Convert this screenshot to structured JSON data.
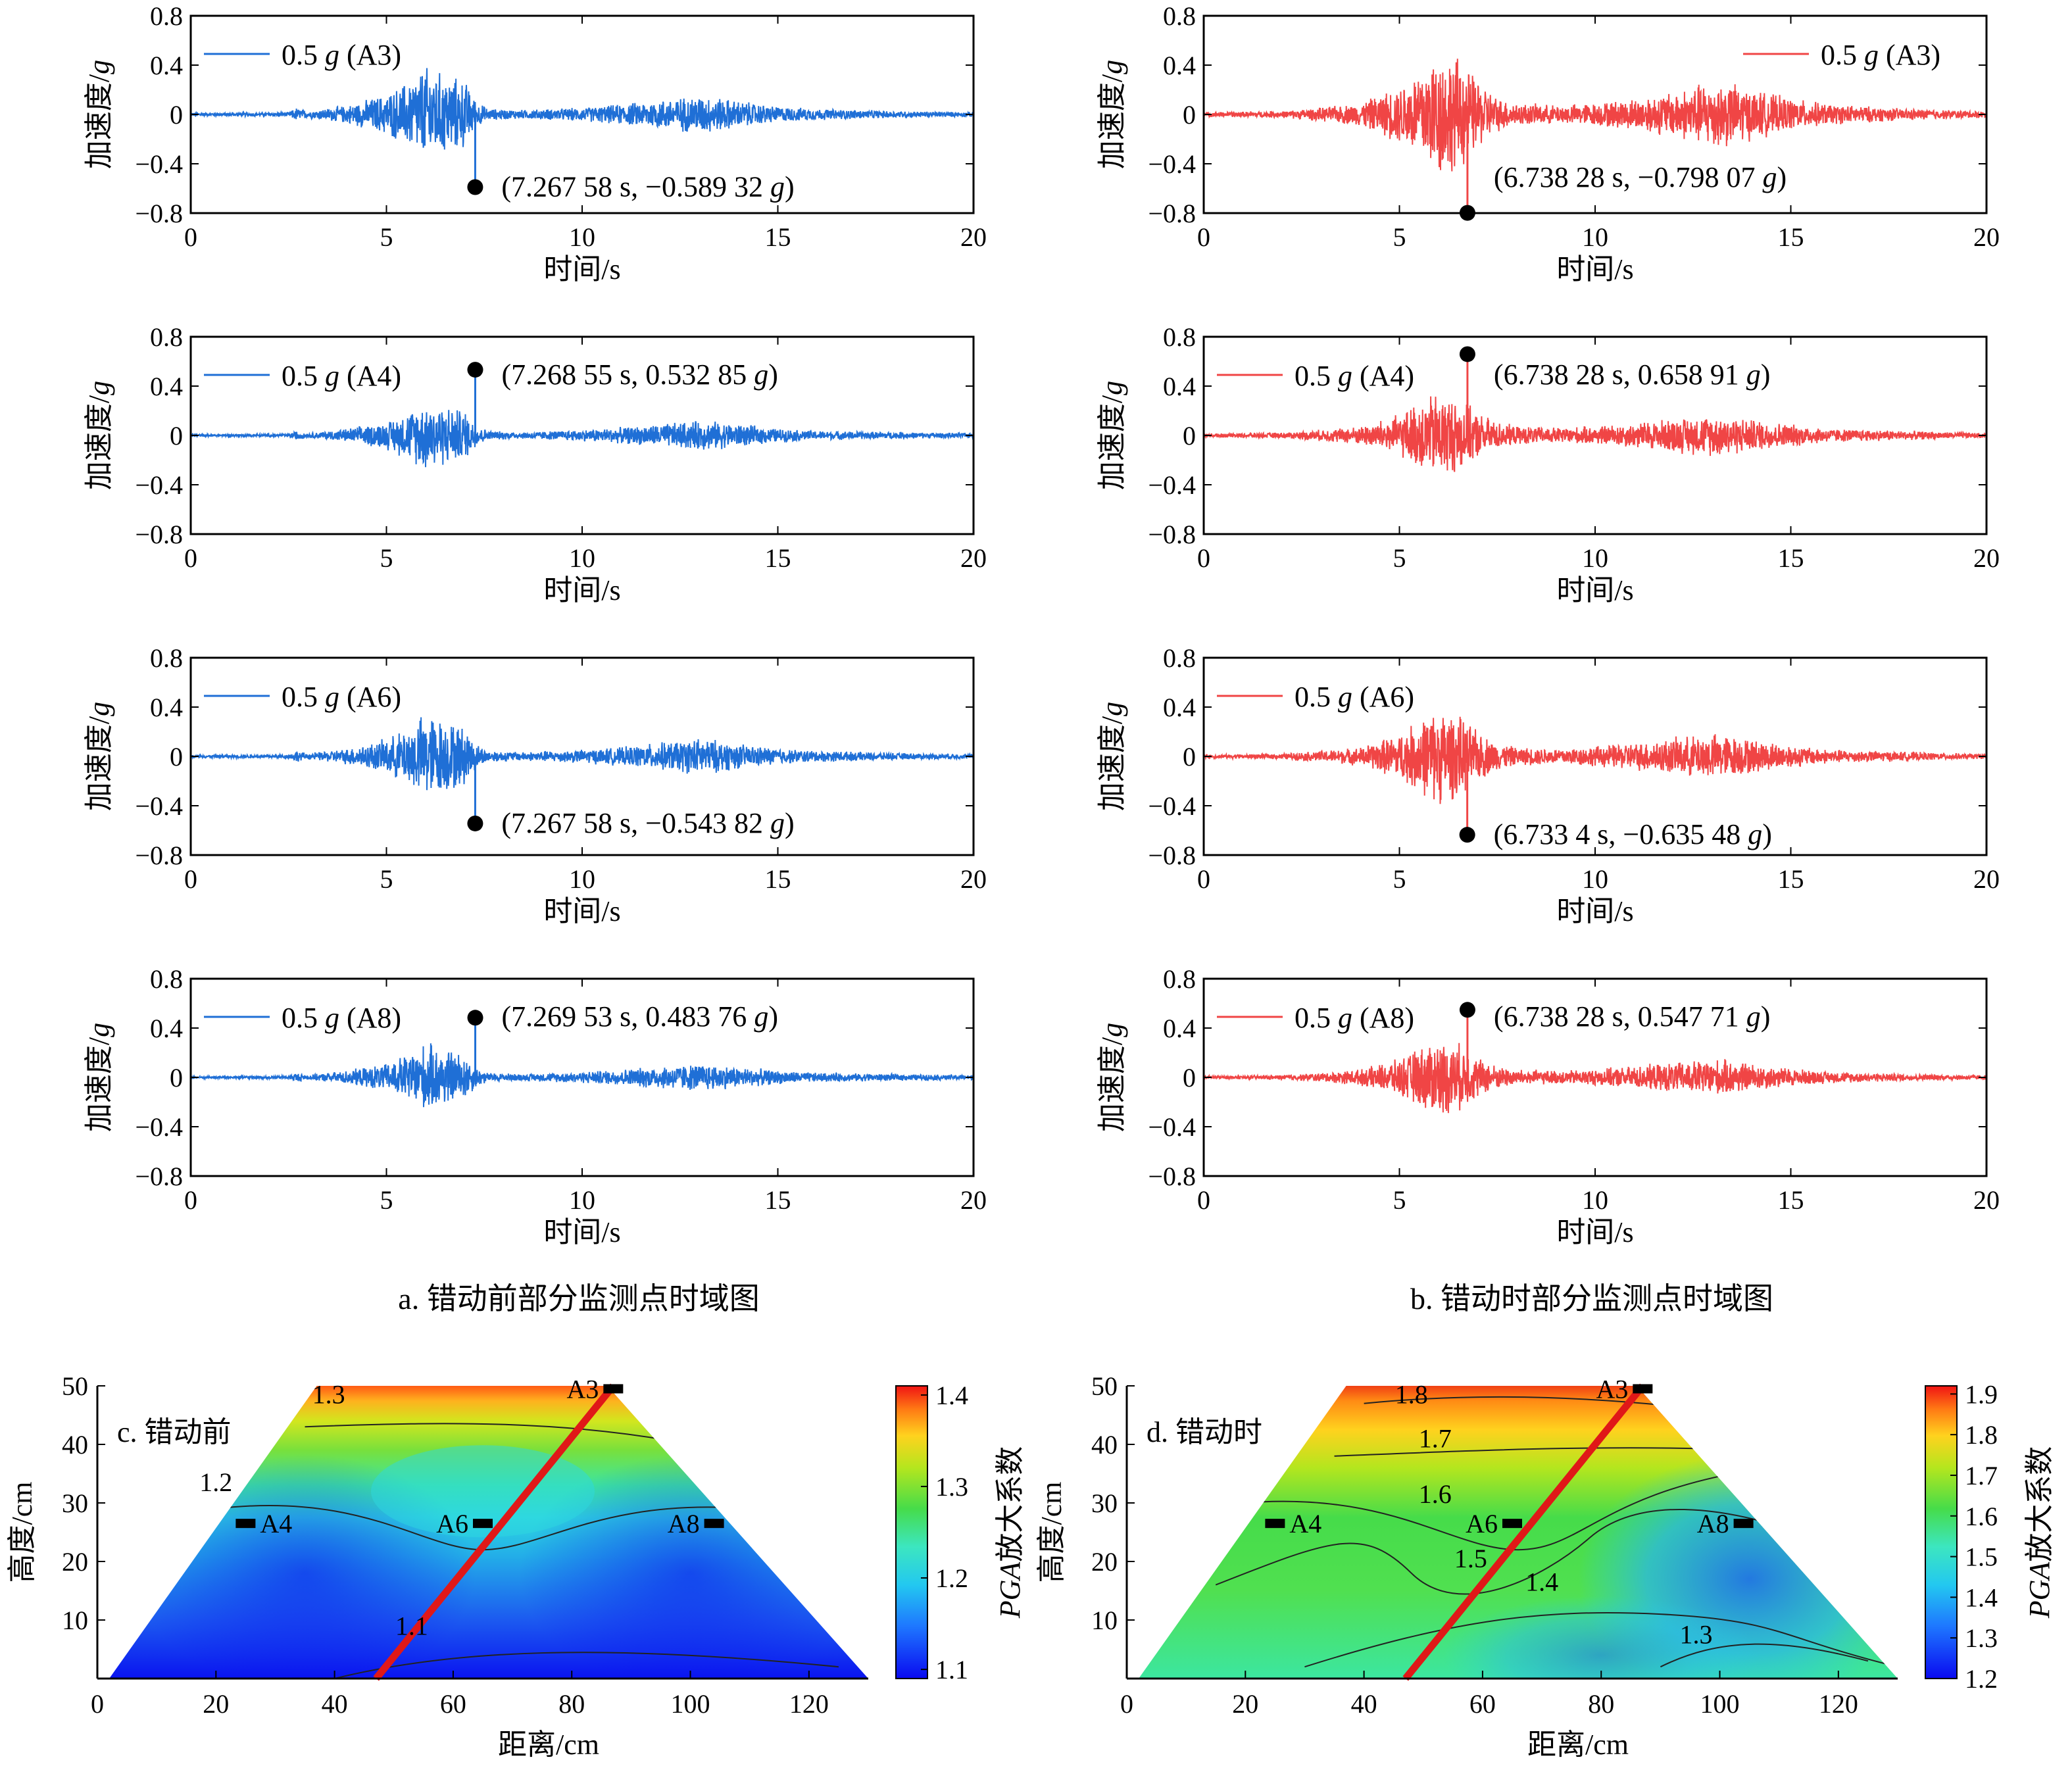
{
  "time_charts": {
    "xlabel": "时间/s",
    "ylabel_main": "加速度/",
    "ylabel_unit": "g",
    "xticks": [
      "0",
      "5",
      "10",
      "15",
      "20"
    ],
    "yticks": [
      "0.8",
      "0.4",
      "0",
      "−0.4",
      "−0.8"
    ],
    "xlim": [
      0,
      20
    ],
    "ylim": [
      -0.8,
      0.8
    ]
  },
  "captions": {
    "a": "a. 错动前部分监测点时域图",
    "b": "b. 错动时部分监测点时域图"
  },
  "chart_data": [
    {
      "id": "a1",
      "type": "line",
      "color": "#1f6fd6",
      "legend_value": "0.5",
      "legend_unit": "g",
      "legend_point": "(A3)",
      "xlim": [
        0,
        20
      ],
      "ylim": [
        -0.8,
        0.8
      ],
      "peak": {
        "t": 7.26758,
        "a": -0.58932
      },
      "annotation": {
        "prefix": "(7.267 58 s, −0.589 32 ",
        "unit": "g",
        "suffix": ")"
      },
      "envelope": {
        "t": [
          0,
          2.5,
          2.7,
          3,
          4,
          5,
          5.5,
          6,
          6.5,
          7,
          7.3,
          7.6,
          8.5,
          10,
          11,
          12,
          13,
          13.5,
          14,
          15,
          16,
          18,
          20
        ],
        "amp": [
          0.015,
          0.02,
          0.06,
          0.03,
          0.08,
          0.18,
          0.28,
          0.42,
          0.35,
          0.3,
          0.12,
          0.05,
          0.04,
          0.06,
          0.09,
          0.13,
          0.17,
          0.15,
          0.12,
          0.07,
          0.05,
          0.03,
          0.02
        ]
      }
    },
    {
      "id": "a2",
      "type": "line",
      "color": "#1f6fd6",
      "legend_value": "0.5",
      "legend_unit": "g",
      "legend_point": "(A4)",
      "xlim": [
        0,
        20
      ],
      "ylim": [
        -0.8,
        0.8
      ],
      "peak": {
        "t": 7.26855,
        "a": 0.53285
      },
      "annotation": {
        "prefix": "(7.268 55 s, 0.532 85 ",
        "unit": "g",
        "suffix": ")"
      },
      "envelope": {
        "t": [
          0,
          2.5,
          2.7,
          3,
          4,
          5,
          5.5,
          6,
          6.5,
          7,
          7.3,
          7.6,
          8.5,
          10,
          11,
          12,
          13,
          13.5,
          14,
          15,
          16,
          18,
          20
        ],
        "amp": [
          0.01,
          0.015,
          0.04,
          0.02,
          0.06,
          0.12,
          0.2,
          0.3,
          0.26,
          0.22,
          0.1,
          0.04,
          0.03,
          0.05,
          0.07,
          0.1,
          0.13,
          0.12,
          0.1,
          0.06,
          0.04,
          0.03,
          0.02
        ]
      }
    },
    {
      "id": "a3",
      "type": "line",
      "color": "#1f6fd6",
      "legend_value": "0.5",
      "legend_unit": "g",
      "legend_point": "(A6)",
      "xlim": [
        0,
        20
      ],
      "ylim": [
        -0.8,
        0.8
      ],
      "peak": {
        "t": 7.26758,
        "a": -0.54382
      },
      "annotation": {
        "prefix": "(7.267 58 s, −0.543 82 ",
        "unit": "g",
        "suffix": ")"
      },
      "envelope": {
        "t": [
          0,
          2.5,
          2.7,
          3,
          4,
          5,
          5.5,
          6,
          6.5,
          7,
          7.3,
          7.6,
          8.5,
          10,
          11,
          12,
          13,
          13.5,
          14,
          15,
          16,
          18,
          20
        ],
        "amp": [
          0.012,
          0.018,
          0.05,
          0.025,
          0.07,
          0.15,
          0.24,
          0.38,
          0.32,
          0.26,
          0.11,
          0.05,
          0.04,
          0.06,
          0.08,
          0.12,
          0.16,
          0.14,
          0.11,
          0.07,
          0.05,
          0.03,
          0.02
        ]
      }
    },
    {
      "id": "a4",
      "type": "line",
      "color": "#1f6fd6",
      "legend_value": "0.5",
      "legend_unit": "g",
      "legend_point": "(A8)",
      "xlim": [
        0,
        20
      ],
      "ylim": [
        -0.8,
        0.8
      ],
      "peak": {
        "t": 7.26953,
        "a": 0.48376
      },
      "annotation": {
        "prefix": "(7.269 53 s, 0.483 76 ",
        "unit": "g",
        "suffix": ")"
      },
      "envelope": {
        "t": [
          0,
          2.5,
          2.7,
          3,
          4,
          5,
          5.5,
          6,
          6.5,
          7,
          7.3,
          7.6,
          8.5,
          10,
          11,
          12,
          13,
          13.5,
          14,
          15,
          16,
          18,
          20
        ],
        "amp": [
          0.01,
          0.015,
          0.04,
          0.02,
          0.06,
          0.12,
          0.2,
          0.3,
          0.25,
          0.2,
          0.09,
          0.04,
          0.03,
          0.05,
          0.07,
          0.1,
          0.12,
          0.11,
          0.09,
          0.06,
          0.04,
          0.03,
          0.02
        ]
      }
    },
    {
      "id": "b1",
      "type": "line",
      "color": "#f04545",
      "legend_value": "0.5",
      "legend_unit": "g",
      "legend_point": "(A3)",
      "xlim": [
        0,
        20
      ],
      "ylim": [
        -0.8,
        0.8
      ],
      "peak": {
        "t": 6.73828,
        "a": -0.79807
      },
      "annotation": {
        "prefix": "(6.738 28 s, −0.798 07 ",
        "unit": "g",
        "suffix": ")"
      },
      "envelope": {
        "t": [
          0,
          2,
          3,
          4,
          5,
          5.5,
          6,
          6.5,
          7,
          7.5,
          8,
          9,
          10,
          11,
          12,
          13,
          13.5,
          14,
          15,
          16,
          18,
          20
        ],
        "amp": [
          0.02,
          0.03,
          0.06,
          0.1,
          0.25,
          0.4,
          0.55,
          0.5,
          0.3,
          0.15,
          0.1,
          0.08,
          0.1,
          0.14,
          0.2,
          0.3,
          0.28,
          0.22,
          0.14,
          0.09,
          0.05,
          0.03
        ]
      }
    },
    {
      "id": "b2",
      "type": "line",
      "color": "#f04545",
      "legend_value": "0.5",
      "legend_unit": "g",
      "legend_point": "(A4)",
      "xlim": [
        0,
        20
      ],
      "ylim": [
        -0.8,
        0.8
      ],
      "peak": {
        "t": 6.73828,
        "a": 0.65891
      },
      "annotation": {
        "prefix": "(6.738 28 s, 0.658 91 ",
        "unit": "g",
        "suffix": ")"
      },
      "envelope": {
        "t": [
          0,
          2,
          3,
          4,
          5,
          5.5,
          6,
          6.5,
          7,
          7.5,
          8,
          9,
          10,
          11,
          12,
          13,
          13.5,
          14,
          15,
          16,
          18,
          20
        ],
        "amp": [
          0.015,
          0.025,
          0.05,
          0.08,
          0.18,
          0.3,
          0.38,
          0.32,
          0.2,
          0.12,
          0.08,
          0.07,
          0.08,
          0.11,
          0.15,
          0.18,
          0.17,
          0.14,
          0.1,
          0.06,
          0.04,
          0.02
        ]
      }
    },
    {
      "id": "b3",
      "type": "line",
      "color": "#f04545",
      "legend_value": "0.5",
      "legend_unit": "g",
      "legend_point": "(A6)",
      "xlim": [
        0,
        20
      ],
      "ylim": [
        -0.8,
        0.8
      ],
      "peak": {
        "t": 6.7334,
        "a": -0.63548
      },
      "annotation": {
        "prefix": "(6.733 4 s, −0.635 48 ",
        "unit": "g",
        "suffix": ")"
      },
      "envelope": {
        "t": [
          0,
          2,
          3,
          4,
          5,
          5.5,
          6,
          6.5,
          7,
          7.5,
          8,
          9,
          10,
          11,
          12,
          13,
          13.5,
          14,
          15,
          16,
          18,
          20
        ],
        "amp": [
          0.015,
          0.025,
          0.05,
          0.08,
          0.2,
          0.32,
          0.42,
          0.36,
          0.22,
          0.12,
          0.08,
          0.07,
          0.09,
          0.12,
          0.16,
          0.2,
          0.18,
          0.15,
          0.1,
          0.06,
          0.04,
          0.02
        ]
      }
    },
    {
      "id": "b4",
      "type": "line",
      "color": "#f04545",
      "legend_value": "0.5",
      "legend_unit": "g",
      "legend_point": "(A8)",
      "xlim": [
        0,
        20
      ],
      "ylim": [
        -0.8,
        0.8
      ],
      "peak": {
        "t": 6.73828,
        "a": 0.54771
      },
      "annotation": {
        "prefix": "(6.738 28 s, 0.547 71 ",
        "unit": "g",
        "suffix": ")"
      },
      "envelope": {
        "t": [
          0,
          2,
          3,
          4,
          5,
          5.5,
          6,
          6.5,
          7,
          7.5,
          8,
          9,
          10,
          11,
          12,
          13,
          13.5,
          14,
          15,
          16,
          18,
          20
        ],
        "amp": [
          0.012,
          0.02,
          0.04,
          0.07,
          0.16,
          0.26,
          0.34,
          0.3,
          0.18,
          0.1,
          0.07,
          0.06,
          0.07,
          0.1,
          0.13,
          0.16,
          0.15,
          0.12,
          0.08,
          0.05,
          0.03,
          0.02
        ]
      }
    },
    {
      "id": "c",
      "type": "heatmap",
      "title": "c. 错动前",
      "xlabel": "距离/cm",
      "ylabel": "高度/cm",
      "xticks": [
        "0",
        "20",
        "40",
        "60",
        "80",
        "100",
        "120"
      ],
      "yticks": [
        "50",
        "40",
        "30",
        "20",
        "10"
      ],
      "xlim": [
        0,
        130
      ],
      "ylim": [
        0,
        50
      ],
      "colorbar": {
        "label_italic": "PGA",
        "label_rest": "放大系数",
        "ticks": [
          "1.4",
          "1.3",
          "1.2",
          "1.1"
        ],
        "range": [
          1.09,
          1.41
        ]
      },
      "trapezoid": [
        [
          2,
          0
        ],
        [
          130,
          0
        ],
        [
          86,
          50
        ],
        [
          37,
          50
        ]
      ],
      "fault_line": [
        [
          47,
          0
        ],
        [
          87,
          50
        ]
      ],
      "sensors": [
        {
          "name": "A4",
          "x": 25,
          "y": 26.5
        },
        {
          "name": "A6",
          "x": 65,
          "y": 26.5
        },
        {
          "name": "A8",
          "x": 104,
          "y": 26.5
        },
        {
          "name": "A3",
          "x": 87,
          "y": 49.5
        }
      ],
      "contour_labels": [
        {
          "text": "1.3",
          "x": 39,
          "y": 47
        },
        {
          "text": "1.2",
          "x": 20,
          "y": 32
        },
        {
          "text": "1.1",
          "x": 53,
          "y": 7.5
        }
      ]
    },
    {
      "id": "d",
      "type": "heatmap",
      "title": "d. 错动时",
      "xlabel": "距离/cm",
      "ylabel": "高度/cm",
      "xticks": [
        "0",
        "20",
        "40",
        "60",
        "80",
        "100",
        "120"
      ],
      "yticks": [
        "50",
        "40",
        "30",
        "20",
        "10"
      ],
      "xlim": [
        0,
        130
      ],
      "ylim": [
        0,
        50
      ],
      "colorbar": {
        "label_italic": "PGA",
        "label_rest": "放大系数",
        "ticks": [
          "1.9",
          "1.8",
          "1.7",
          "1.6",
          "1.5",
          "1.4",
          "1.3",
          "1.2"
        ],
        "range": [
          1.2,
          1.92
        ]
      },
      "trapezoid": [
        [
          2,
          0
        ],
        [
          130,
          0
        ],
        [
          86,
          50
        ],
        [
          37,
          50
        ]
      ],
      "fault_line": [
        [
          47,
          0
        ],
        [
          87,
          50
        ]
      ],
      "sensors": [
        {
          "name": "A4",
          "x": 25,
          "y": 26.5
        },
        {
          "name": "A6",
          "x": 65,
          "y": 26.5
        },
        {
          "name": "A8",
          "x": 104,
          "y": 26.5
        },
        {
          "name": "A3",
          "x": 87,
          "y": 49.5
        }
      ],
      "contour_labels": [
        {
          "text": "1.8",
          "x": 48,
          "y": 47
        },
        {
          "text": "1.7",
          "x": 52,
          "y": 39.5
        },
        {
          "text": "1.6",
          "x": 52,
          "y": 30
        },
        {
          "text": "1.5",
          "x": 58,
          "y": 19
        },
        {
          "text": "1.4",
          "x": 70,
          "y": 15
        },
        {
          "text": "1.3",
          "x": 96,
          "y": 6
        }
      ]
    }
  ]
}
